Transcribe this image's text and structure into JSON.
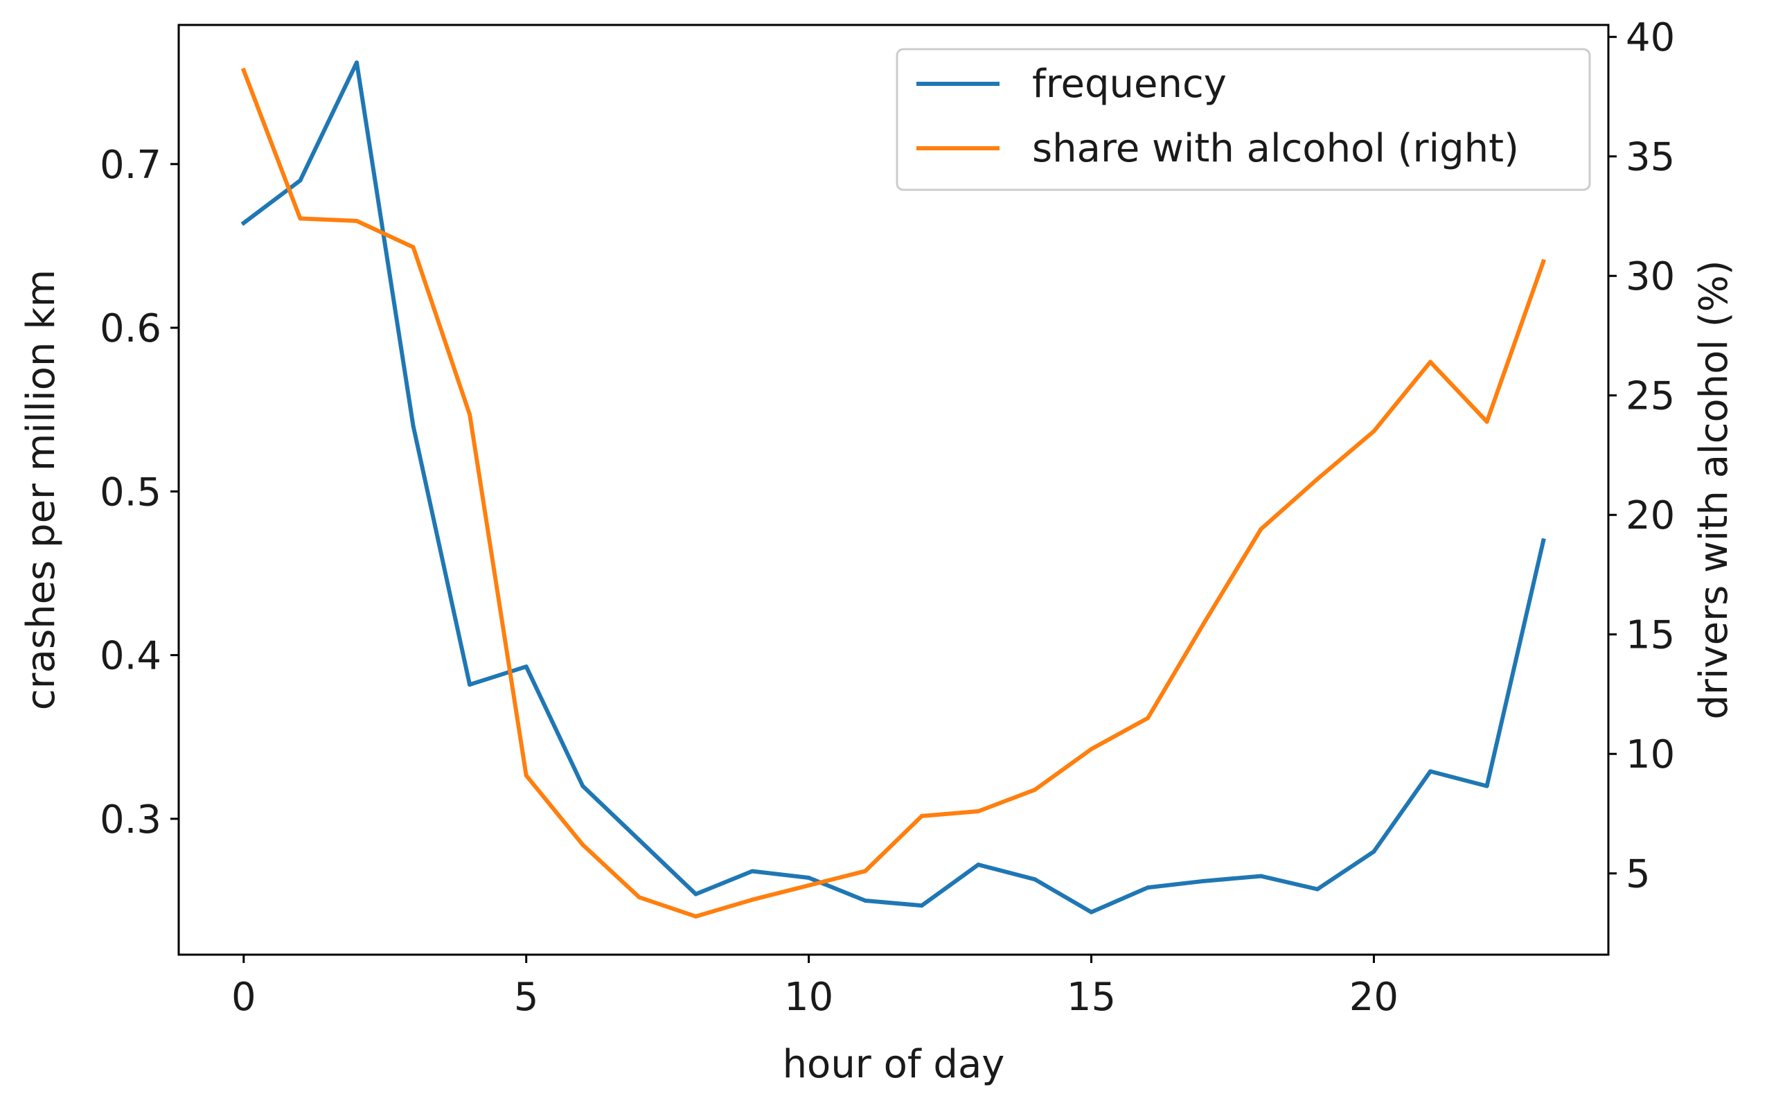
{
  "chart_data": {
    "type": "line",
    "xlabel": "hour of day",
    "ylabel_left": "crashes per million km",
    "ylabel_right": "drivers with alcohol (%)",
    "xlim": [
      -1.15,
      24.15
    ],
    "ylim_left": [
      0.217,
      0.785
    ],
    "ylim_right": [
      1.6,
      40.5
    ],
    "xticks": [
      0,
      5,
      10,
      15,
      20
    ],
    "yticks_left": [
      0.3,
      0.4,
      0.5,
      0.6,
      0.7
    ],
    "yticks_right": [
      5,
      10,
      15,
      20,
      25,
      30,
      35,
      40
    ],
    "x": [
      0,
      1,
      2,
      3,
      4,
      5,
      6,
      7,
      8,
      9,
      10,
      11,
      12,
      13,
      14,
      15,
      16,
      17,
      18,
      19,
      20,
      21,
      22,
      23
    ],
    "series": [
      {
        "name": "frequency",
        "axis": "left",
        "color": "#1f77b4",
        "values": [
          0.664,
          0.69,
          0.762,
          0.54,
          0.382,
          0.393,
          0.32,
          0.287,
          0.254,
          0.268,
          0.264,
          0.25,
          0.247,
          0.272,
          0.263,
          0.243,
          0.258,
          0.262,
          0.265,
          0.257,
          0.28,
          0.329,
          0.32,
          0.47
        ]
      },
      {
        "name": "share with alcohol (right)",
        "axis": "right",
        "color": "#ff7f0e",
        "values": [
          38.6,
          32.4,
          32.3,
          31.2,
          24.2,
          9.1,
          6.2,
          4.0,
          3.2,
          3.9,
          4.5,
          5.1,
          7.4,
          7.6,
          8.5,
          10.2,
          11.5,
          15.5,
          19.4,
          21.5,
          23.5,
          26.4,
          23.9,
          30.6
        ]
      }
    ],
    "legend": {
      "location": "top-right",
      "entries": [
        "frequency",
        "share with alcohol (right)"
      ]
    }
  }
}
